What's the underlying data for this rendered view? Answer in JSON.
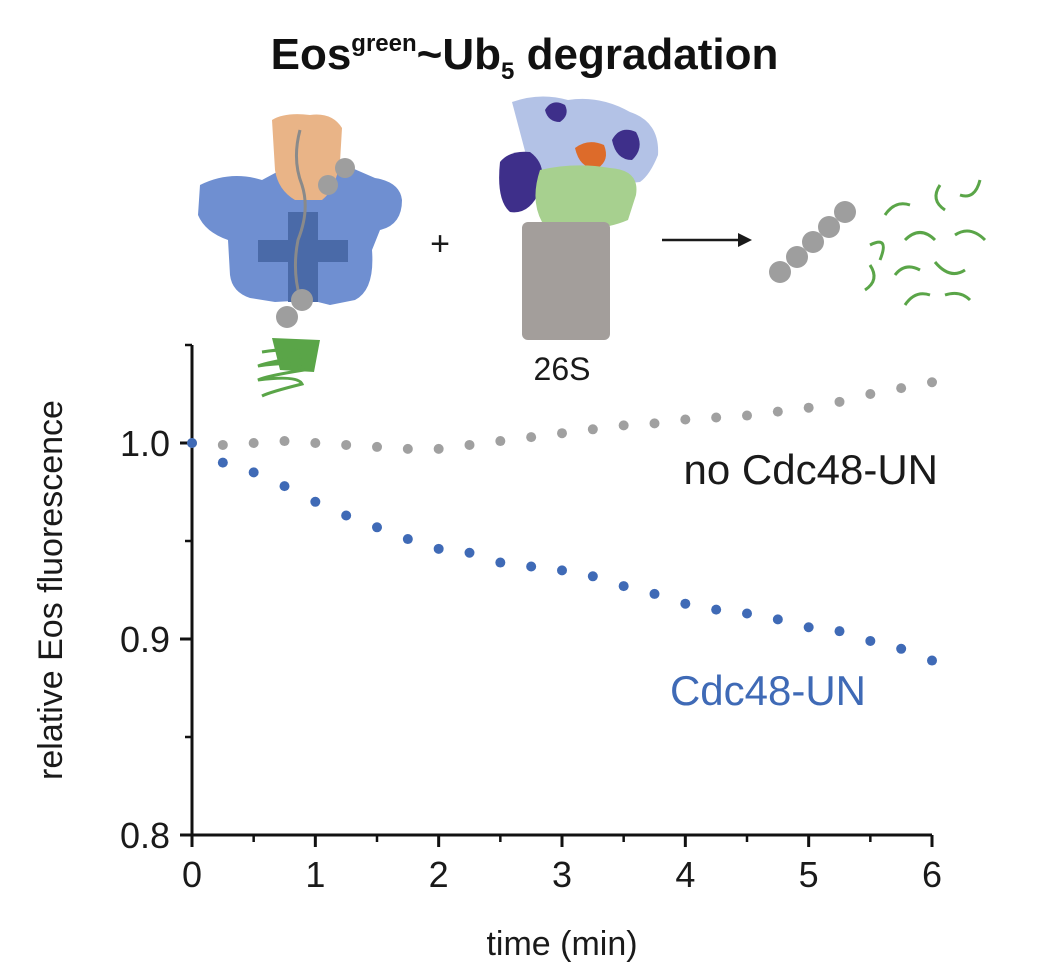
{
  "title": {
    "main": "Eos",
    "superscript": "green",
    "middle": "~Ub",
    "subscript": "5",
    "end": " degradation"
  },
  "schematic": {
    "plus": "+",
    "proteasome_label": "26S",
    "colors": {
      "cdc48": "#6f8fd1",
      "cdc48_dark": "#4a6aa8",
      "ufd1_npl4": "#e9b487",
      "ubiquitin": "#9e9e9e",
      "eos": "#5aa548",
      "core_particle": "#a39e9b",
      "base": "#a7d08f",
      "lid": "#b3c2e6",
      "lid_dark": "#3e2f8a",
      "rpn11": "#dd6b2a"
    }
  },
  "chart_data": {
    "type": "scatter",
    "title": "",
    "xlabel": "time (min)",
    "ylabel": "relative Eos fluorescence",
    "xlim": [
      0,
      6
    ],
    "ylim": [
      0.8,
      1.05
    ],
    "xticks": [
      "0",
      "1",
      "2",
      "3",
      "4",
      "5",
      "6"
    ],
    "yticks": [
      "0.8",
      "0.9",
      "1.0"
    ],
    "grid": false,
    "legend": "none",
    "series": [
      {
        "name": "no Cdc48-UN",
        "color": "#a0a0a0",
        "x": [
          0,
          0.25,
          0.5,
          0.75,
          1.0,
          1.25,
          1.5,
          1.75,
          2.0,
          2.25,
          2.5,
          2.75,
          3.0,
          3.25,
          3.5,
          3.75,
          4.0,
          4.25,
          4.5,
          4.75,
          5.0,
          5.25,
          5.5,
          5.75,
          6.0
        ],
        "values": [
          1.0,
          0.999,
          1.0,
          1.001,
          1.0,
          0.999,
          0.998,
          0.997,
          0.997,
          0.999,
          1.001,
          1.003,
          1.005,
          1.007,
          1.009,
          1.01,
          1.012,
          1.013,
          1.014,
          1.016,
          1.018,
          1.021,
          1.025,
          1.028,
          1.031
        ]
      },
      {
        "name": "Cdc48-UN",
        "color": "#3f6ab6",
        "x": [
          0,
          0.25,
          0.5,
          0.75,
          1.0,
          1.25,
          1.5,
          1.75,
          2.0,
          2.25,
          2.5,
          2.75,
          3.0,
          3.25,
          3.5,
          3.75,
          4.0,
          4.25,
          4.5,
          4.75,
          5.0,
          5.25,
          5.5,
          5.75,
          6.0
        ],
        "values": [
          1.0,
          0.99,
          0.985,
          0.978,
          0.97,
          0.963,
          0.957,
          0.951,
          0.946,
          0.944,
          0.939,
          0.937,
          0.935,
          0.932,
          0.927,
          0.923,
          0.918,
          0.915,
          0.913,
          0.91,
          0.906,
          0.904,
          0.899,
          0.895,
          0.889
        ]
      }
    ]
  }
}
